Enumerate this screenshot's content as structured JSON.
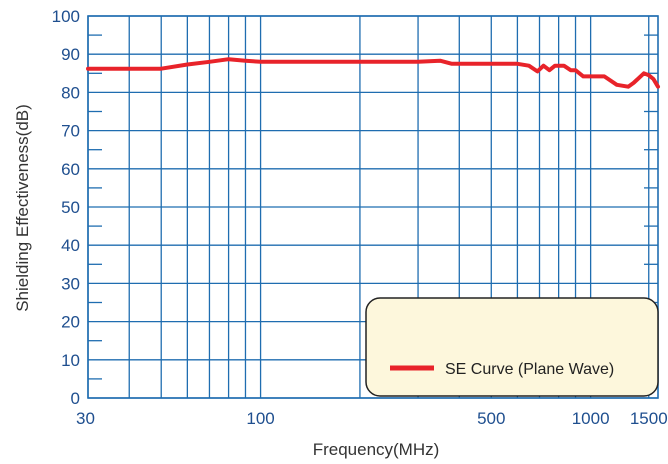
{
  "chart_data": {
    "type": "line",
    "x_scale": "log",
    "xlabel": "Frequency(MHz)",
    "ylabel": "Shielding Effectiveness(dB)",
    "xlim": [
      30,
      1600
    ],
    "ylim": [
      0,
      100
    ],
    "y_ticks": [
      0,
      10,
      20,
      30,
      40,
      50,
      60,
      70,
      80,
      90,
      100
    ],
    "x_tick_labels": [
      {
        "value": 30,
        "label": "30"
      },
      {
        "value": 100,
        "label": "100"
      },
      {
        "value": 500,
        "label": "500"
      },
      {
        "value": 1000,
        "label": "1000"
      },
      {
        "value": 1500,
        "label": "1500"
      }
    ],
    "x_gridlines": [
      30,
      40,
      50,
      60,
      70,
      80,
      90,
      100,
      200,
      300,
      400,
      500,
      600,
      700,
      800,
      900,
      1000,
      1500
    ],
    "grid": true,
    "legend_position": "bottom-right",
    "colors": {
      "grid": "#1f6db0",
      "series": "#e8232a",
      "legend_bg": "#fdf7dc",
      "legend_border": "#222222",
      "tick_text": "#1f4f8f"
    },
    "series": [
      {
        "name": "SE Curve (Plane Wave)",
        "x": [
          30,
          40,
          50,
          60,
          70,
          80,
          90,
          100,
          200,
          300,
          350,
          380,
          400,
          500,
          600,
          650,
          690,
          720,
          750,
          780,
          830,
          870,
          900,
          950,
          1000,
          1100,
          1200,
          1300,
          1350,
          1450,
          1500,
          1550,
          1600
        ],
        "y": [
          86.2,
          86.2,
          86.2,
          87.3,
          88,
          88.7,
          88.3,
          88,
          88,
          88,
          88.3,
          87.5,
          87.5,
          87.5,
          87.5,
          87,
          85.5,
          87,
          85.8,
          87,
          87,
          85.8,
          85.8,
          84.2,
          84.2,
          84.2,
          82,
          81.5,
          82.5,
          85,
          84.5,
          83.5,
          81.5
        ]
      }
    ]
  }
}
